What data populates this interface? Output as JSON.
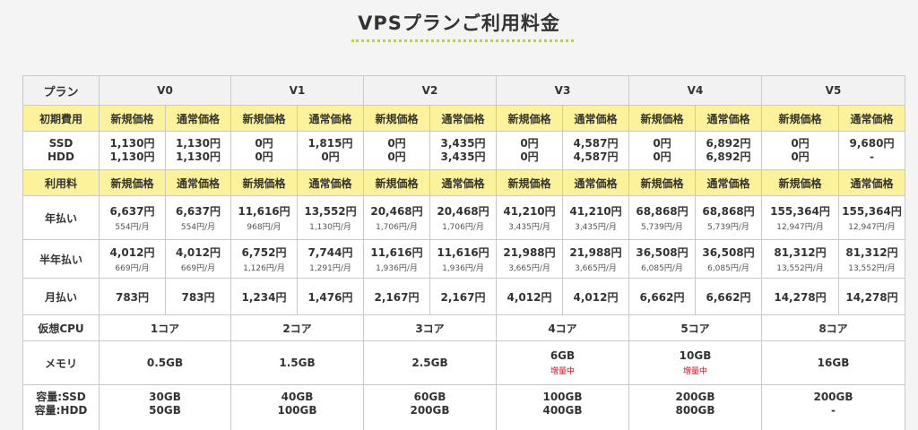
{
  "title": "VPSプランご利用料金",
  "header": {
    "label": "プラン",
    "plans": [
      "V0",
      "V1",
      "V2",
      "V3",
      "V4",
      "V5"
    ]
  },
  "col_labels": {
    "new": "新規価格",
    "regular": "通常価格"
  },
  "initial_fee": {
    "label": "初期費用",
    "ssd_label": "SSD",
    "hdd_label": "HDD",
    "plans": [
      {
        "new_ssd": "1,130円",
        "new_hdd": "1,130円",
        "reg_ssd": "1,130円",
        "reg_hdd": "1,130円",
        "highlight": false
      },
      {
        "new_ssd": "0円",
        "new_hdd": "0円",
        "reg_ssd": "1,815円",
        "reg_hdd": "0円",
        "highlight": true
      },
      {
        "new_ssd": "0円",
        "new_hdd": "0円",
        "reg_ssd": "3,435円",
        "reg_hdd": "3,435円",
        "highlight": true
      },
      {
        "new_ssd": "0円",
        "new_hdd": "0円",
        "reg_ssd": "4,587円",
        "reg_hdd": "4,587円",
        "highlight": true
      },
      {
        "new_ssd": "0円",
        "new_hdd": "0円",
        "reg_ssd": "6,892円",
        "reg_hdd": "6,892円",
        "highlight": true
      },
      {
        "new_ssd": "0円",
        "new_hdd": "0円",
        "reg_ssd": "9,680円",
        "reg_hdd": "-",
        "highlight": true
      }
    ]
  },
  "usage_fee": {
    "label": "利用料",
    "rows": [
      {
        "label": "年払い",
        "plans": [
          {
            "new": "6,637円",
            "new_sub": "554円/月",
            "reg": "6,637円",
            "reg_sub": "554円/月",
            "highlight": false
          },
          {
            "new": "11,616円",
            "new_sub": "968円/月",
            "reg": "13,552円",
            "reg_sub": "1,130円/月",
            "highlight": true
          },
          {
            "new": "20,468円",
            "new_sub": "1,706円/月",
            "reg": "20,468円",
            "reg_sub": "1,706円/月",
            "highlight": false
          },
          {
            "new": "41,210円",
            "new_sub": "3,435円/月",
            "reg": "41,210円",
            "reg_sub": "3,435円/月",
            "highlight": false
          },
          {
            "new": "68,868円",
            "new_sub": "5,739円/月",
            "reg": "68,868円",
            "reg_sub": "5,739円/月",
            "highlight": false
          },
          {
            "new": "155,364円",
            "new_sub": "12,947円/月",
            "reg": "155,364円",
            "reg_sub": "12,947円/月",
            "highlight": false
          }
        ]
      },
      {
        "label": "半年払い",
        "plans": [
          {
            "new": "4,012円",
            "new_sub": "669円/月",
            "reg": "4,012円",
            "reg_sub": "669円/月",
            "highlight": false
          },
          {
            "new": "6,752円",
            "new_sub": "1,126円/月",
            "reg": "7,744円",
            "reg_sub": "1,291円/月",
            "highlight": true
          },
          {
            "new": "11,616円",
            "new_sub": "1,936円/月",
            "reg": "11,616円",
            "reg_sub": "1,936円/月",
            "highlight": false
          },
          {
            "new": "21,988円",
            "new_sub": "3,665円/月",
            "reg": "21,988円",
            "reg_sub": "3,665円/月",
            "highlight": false
          },
          {
            "new": "36,508円",
            "new_sub": "6,085円/月",
            "reg": "36,508円",
            "reg_sub": "6,085円/月",
            "highlight": false
          },
          {
            "new": "81,312円",
            "new_sub": "13,552円/月",
            "reg": "81,312円",
            "reg_sub": "13,552円/月",
            "highlight": false
          }
        ]
      },
      {
        "label": "月払い",
        "plans": [
          {
            "new": "783円",
            "new_sub": "",
            "reg": "783円",
            "reg_sub": "",
            "highlight": false
          },
          {
            "new": "1,234円",
            "new_sub": "",
            "reg": "1,476円",
            "reg_sub": "",
            "highlight": true
          },
          {
            "new": "2,167円",
            "new_sub": "",
            "reg": "2,167円",
            "reg_sub": "",
            "highlight": false
          },
          {
            "new": "4,012円",
            "new_sub": "",
            "reg": "4,012円",
            "reg_sub": "",
            "highlight": false
          },
          {
            "new": "6,662円",
            "new_sub": "",
            "reg": "6,662円",
            "reg_sub": "",
            "highlight": false
          },
          {
            "new": "14,278円",
            "new_sub": "",
            "reg": "14,278円",
            "reg_sub": "",
            "highlight": false
          }
        ]
      }
    ]
  },
  "cpu": {
    "label": "仮想CPU",
    "values": [
      "1コア",
      "2コア",
      "3コア",
      "4コア",
      "5コア",
      "8コア"
    ]
  },
  "memory": {
    "label": "メモリ",
    "values": [
      {
        "value": "0.5GB",
        "note": "",
        "highlight": false
      },
      {
        "value": "1.5GB",
        "note": "",
        "highlight": false
      },
      {
        "value": "2.5GB",
        "note": "",
        "highlight": false
      },
      {
        "value": "6GB",
        "note": "増量中",
        "highlight": true
      },
      {
        "value": "10GB",
        "note": "増量中",
        "highlight": true
      },
      {
        "value": "16GB",
        "note": "",
        "highlight": false
      }
    ]
  },
  "storage": {
    "label_ssd": "容量:SSD",
    "label_hdd": "容量:HDD",
    "values": [
      {
        "ssd": "30GB",
        "hdd": "50GB"
      },
      {
        "ssd": "40GB",
        "hdd": "100GB"
      },
      {
        "ssd": "60GB",
        "hdd": "200GB"
      },
      {
        "ssd": "100GB",
        "hdd": "400GB"
      },
      {
        "ssd": "200GB",
        "hdd": "800GB"
      },
      {
        "ssd": "200GB",
        "hdd": "-"
      }
    ]
  },
  "colors": {
    "accent_yellow": "#fcf29b",
    "highlight_red": "#e60012",
    "dots": "#b8d43a"
  }
}
